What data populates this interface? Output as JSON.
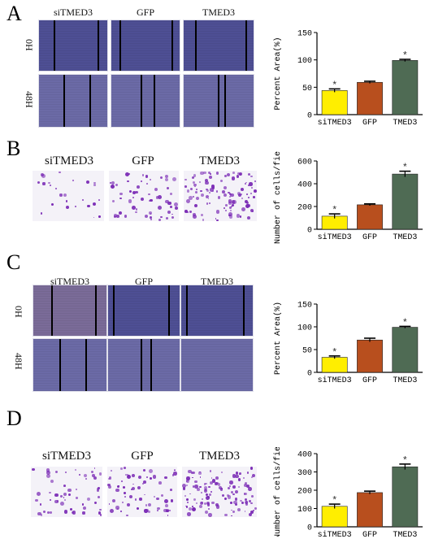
{
  "panels": [
    {
      "letter": "A",
      "columns": [
        "siTMED3",
        "GFP",
        "TMED3"
      ],
      "rows": [
        "0H",
        "48H"
      ]
    },
    {
      "letter": "B",
      "columns": [
        "siTMED3",
        "GFP",
        "TMED3"
      ]
    },
    {
      "letter": "C",
      "columns": [
        "siTMED3",
        "GFP",
        "TMED3"
      ],
      "rows": [
        "0H",
        "48H"
      ]
    },
    {
      "letter": "D",
      "columns": [
        "siTMED3",
        "GFP",
        "TMED3"
      ]
    }
  ],
  "chart_data": [
    {
      "type": "bar",
      "panel": "A",
      "categories": [
        "siTMED3",
        "GFP",
        "TMED3"
      ],
      "values": [
        44,
        59,
        99
      ],
      "errors": [
        3,
        2,
        2
      ],
      "significant": [
        true,
        false,
        true
      ],
      "ylabel": "Percent Area(%)",
      "ylim": [
        0,
        150
      ],
      "yticks": [
        0,
        50,
        100,
        150
      ],
      "colors": [
        "#ffee00",
        "#b84f1e",
        "#4f6b54"
      ]
    },
    {
      "type": "bar",
      "panel": "B",
      "categories": [
        "siTMED3",
        "GFP",
        "TMED3"
      ],
      "values": [
        115,
        215,
        485
      ],
      "errors": [
        20,
        8,
        25
      ],
      "significant": [
        true,
        false,
        true
      ],
      "ylabel": "Number of cells/fiel",
      "ylim": [
        0,
        600
      ],
      "yticks": [
        0,
        200,
        400,
        600
      ],
      "colors": [
        "#ffee00",
        "#b84f1e",
        "#4f6b54"
      ]
    },
    {
      "type": "bar",
      "panel": "C",
      "categories": [
        "siTMED3",
        "GFP",
        "TMED3"
      ],
      "values": [
        33,
        71,
        99
      ],
      "errors": [
        3,
        4,
        2
      ],
      "significant": [
        true,
        false,
        true
      ],
      "ylabel": "Percent Area(%)",
      "ylim": [
        0,
        150
      ],
      "yticks": [
        0,
        50,
        100,
        150
      ],
      "colors": [
        "#ffee00",
        "#b84f1e",
        "#4f6b54"
      ]
    },
    {
      "type": "bar",
      "panel": "D",
      "categories": [
        "siTMED3",
        "GFP",
        "TMED3"
      ],
      "values": [
        112,
        187,
        328
      ],
      "errors": [
        12,
        8,
        15
      ],
      "significant": [
        true,
        false,
        true
      ],
      "ylabel": "Number of cells/fiel",
      "ylim": [
        0,
        400
      ],
      "yticks": [
        0,
        100,
        200,
        300,
        400
      ],
      "colors": [
        "#ffee00",
        "#b84f1e",
        "#4f6b54"
      ]
    }
  ],
  "significance_mark": "*"
}
